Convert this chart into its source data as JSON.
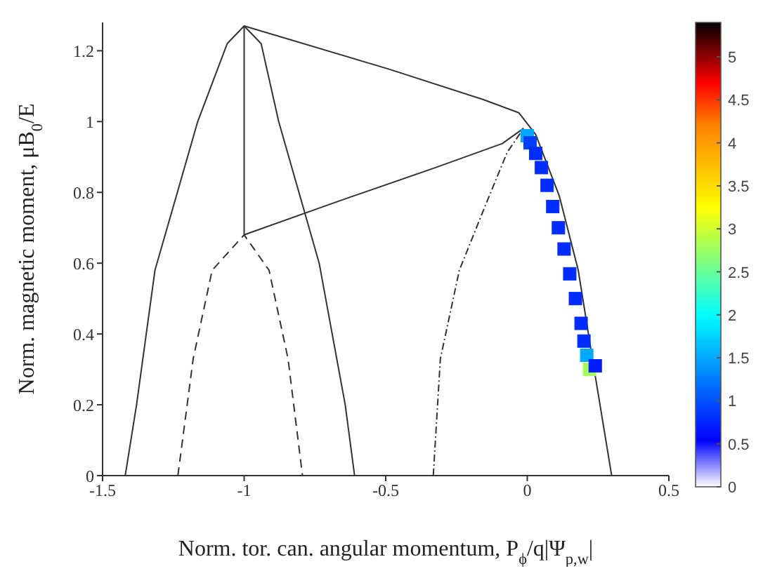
{
  "chart_data": {
    "type": "line",
    "xlabel": "Norm. tor. can. angular momentum, P$_{ϕ}$/q|Ψ$_{p,w}$|",
    "ylabel": "Norm. magnetic moment, μB$_{0}$/E",
    "xlim": [
      -1.5,
      0.5
    ],
    "xticks": [
      -1.5,
      -1,
      -0.5,
      0,
      0.5
    ],
    "ylim": [
      0,
      1.28
    ],
    "yticks": [
      0,
      0.2,
      0.4,
      0.6,
      0.8,
      1,
      1.2
    ],
    "clim": [
      0,
      5.4
    ],
    "cticks": [
      0,
      0.5,
      1,
      1.5,
      2,
      2.5,
      3,
      3.5,
      4,
      4.5,
      5
    ],
    "marker": "none",
    "series": [
      {
        "color": "#333333",
        "line_style": "solid",
        "x": [
          -1.42,
          -1.38,
          -1.315,
          -1.164,
          -1.06,
          -1.0,
          -0.94,
          -0.878,
          -0.735,
          -0.643,
          -0.61
        ],
        "values": [
          0,
          0.2,
          0.58,
          1.0,
          1.22,
          1.27,
          1.22,
          1.0,
          0.6,
          0.2,
          0
        ]
      },
      {
        "color": "#333333",
        "line_style": "solid",
        "x": [
          -1.0,
          -1.0
        ],
        "values": [
          0.68,
          1.27
        ]
      },
      {
        "color": "#333333",
        "line_style": "solid",
        "x": [
          -1.0,
          -0.492,
          -0.155,
          -0.03,
          0.03,
          0.113,
          0.18,
          0.23,
          0.298
        ],
        "values": [
          1.27,
          1.149,
          1.062,
          1.025,
          0.963,
          0.79,
          0.58,
          0.33,
          0
        ]
      },
      {
        "color": "#333333",
        "line_style": "solid",
        "x": [
          -1.0,
          -0.66,
          -0.324,
          -0.088,
          -0.013
        ],
        "values": [
          0.68,
          0.777,
          0.87,
          0.938,
          0.981
        ]
      },
      {
        "color": "#333333",
        "line_style": "dashed",
        "x": [
          -1.234,
          -1.18,
          -1.113,
          -1.0,
          -0.912,
          -0.845,
          -0.794
        ],
        "values": [
          0,
          0.33,
          0.58,
          0.68,
          0.58,
          0.33,
          0
        ]
      },
      {
        "color": "#333333",
        "line_style": "dotted",
        "x": [
          -0.332,
          -0.307,
          -0.24,
          -0.147,
          -0.071,
          -0.013
        ],
        "values": [
          0,
          0.33,
          0.58,
          0.765,
          0.913,
          0.981
        ]
      },
      {
        "type": "scatter",
        "marker": "square",
        "x": [
          0.0,
          0.01,
          0.03,
          0.05,
          0.07,
          0.09,
          0.11,
          0.13,
          0.15,
          0.17,
          0.19,
          0.2,
          0.21,
          0.22,
          0.24
        ],
        "values": [
          0.96,
          0.94,
          0.91,
          0.87,
          0.82,
          0.76,
          0.7,
          0.64,
          0.57,
          0.5,
          0.43,
          0.38,
          0.34,
          0.3,
          0.31
        ],
        "cvalues": [
          1.5,
          0.9,
          0.8,
          0.8,
          0.8,
          0.8,
          0.8,
          0.8,
          0.8,
          0.8,
          0.8,
          0.8,
          1.5,
          2.8,
          0.7
        ],
        "colors": [
          "#00a8ff",
          "#003fff",
          "#002dff",
          "#002dff",
          "#002dff",
          "#002dff",
          "#002dff",
          "#002dff",
          "#002dff",
          "#002dff",
          "#002dff",
          "#002dff",
          "#00a8ff",
          "#a5ff5a",
          "#001cff"
        ]
      }
    ]
  }
}
